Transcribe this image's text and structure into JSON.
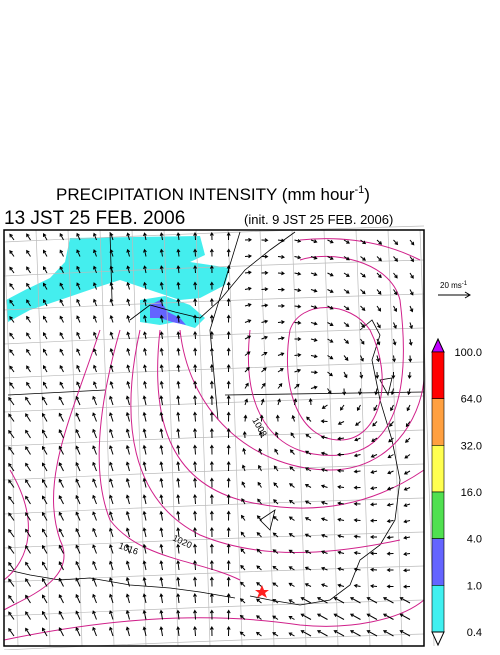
{
  "header": {
    "title": "PRECIPITATION INTENSITY (mm hour",
    "title_exponent": "-1",
    "title_close": ")",
    "time": "13 JST 25 FEB. 2006",
    "init": "(init. 9 JST 25 FEB. 2006)"
  },
  "wind_scale": {
    "label": "20 ms",
    "exponent": "-1"
  },
  "colorbar": {
    "labels": [
      "100.0",
      "64.0",
      "32.0",
      "16.0",
      "4.0",
      "1.0",
      "0.4"
    ],
    "colors": [
      "#ff0000",
      "#ffa040",
      "#ffff50",
      "#50e050",
      "#6464ff",
      "#40f0f0"
    ],
    "over_color": "#c000ff",
    "under_color": "#ffffff"
  },
  "contour_labels": [
    "1008",
    "1016",
    "1020"
  ]
}
